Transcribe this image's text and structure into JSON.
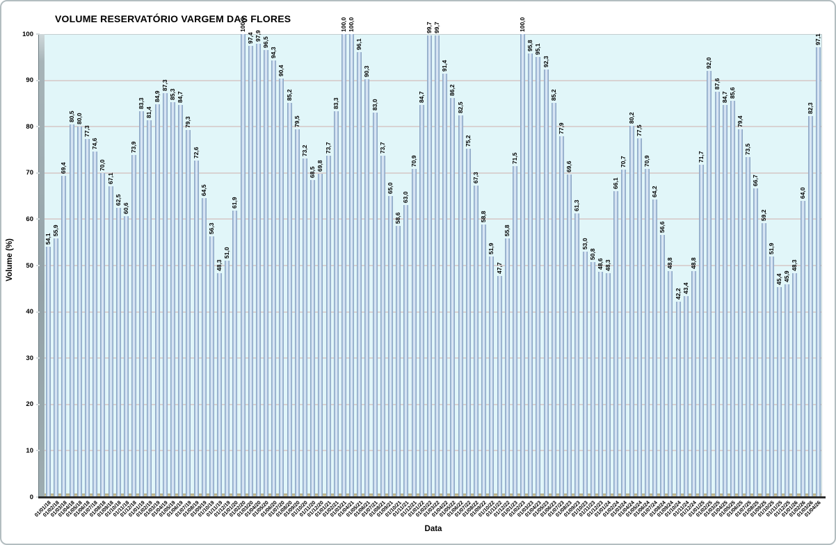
{
  "chart_data": {
    "type": "bar",
    "title": "VOLUME RESERVATÓRIO VARGEM DAS FLORES",
    "xlabel": "Data",
    "ylabel": "Volume (%)",
    "ylim": [
      0,
      100
    ],
    "yticks": [
      0,
      10,
      20,
      30,
      40,
      50,
      60,
      70,
      80,
      90,
      100
    ],
    "grid": true,
    "legend": "none",
    "decimal_separator": ",",
    "value_label_rotation_deg": 90,
    "category_label_rotation_deg": 45,
    "categories": [
      "01/01/18",
      "01/02/18",
      "01/03/18",
      "01/04/18",
      "01/05/18",
      "01/06/18",
      "01/07/18",
      "01/08/18",
      "01/09/18",
      "01/10/18",
      "01/11/18",
      "01/12/18",
      "01/01/19",
      "01/02/19",
      "01/03/19",
      "01/04/19",
      "01/05/19",
      "01/06/19",
      "01/07/19",
      "01/08/19",
      "01/09/19",
      "01/10/19",
      "01/11/19",
      "01/12/19",
      "01/01/20",
      "01/02/20",
      "01/03/20",
      "01/04/20",
      "01/05/20",
      "01/06/20",
      "01/07/20",
      "01/08/20",
      "01/09/20",
      "01/10/20",
      "01/11/20",
      "01/12/20",
      "01/01/21",
      "01/02/21",
      "01/03/21",
      "01/04/21",
      "01/05/21",
      "01/06/21",
      "01/07/21",
      "01/08/21",
      "01/09/21",
      "01/10/21",
      "01/11/21",
      "01/12/21",
      "01/01/22",
      "01/02/22",
      "01/03/22",
      "01/04/22",
      "01/05/22",
      "01/06/22",
      "01/07/22",
      "01/08/22",
      "01/09/22",
      "01/10/22",
      "01/11/22",
      "01/12/22",
      "01/01/23",
      "01/02/23",
      "01/03/23",
      "01/04/23",
      "01/05/23",
      "01/06/23",
      "01/07/23",
      "01/08/23",
      "01/09/23",
      "01/10/23",
      "01/11/23",
      "01/12/23",
      "01/01/24",
      "01/02/24",
      "01/03/24",
      "01/04/24",
      "01/05/24",
      "01/06/24",
      "01/07/24",
      "01/08/24",
      "01/09/24",
      "01/10/24",
      "01/11/24",
      "01/12/24",
      "01/01/25",
      "01/02/25",
      "01/03/25",
      "01/04/25",
      "01/05/25",
      "01/06/25",
      "01/07/25",
      "01/08/25",
      "01/09/25",
      "01/10/25",
      "01/11/25",
      "01/12/25",
      "01/01/26",
      "01/02/26",
      "01/03/26",
      "01/04/26"
    ],
    "values": [
      54.1,
      55.9,
      69.4,
      80.5,
      80.0,
      77.3,
      74.6,
      70.0,
      67.1,
      62.5,
      60.6,
      73.9,
      83.3,
      81.4,
      84.9,
      87.3,
      85.3,
      84.7,
      79.3,
      72.6,
      64.5,
      56.3,
      48.3,
      51.0,
      61.9,
      100.0,
      97.4,
      97.9,
      96.5,
      94.3,
      90.4,
      85.2,
      79.5,
      73.2,
      68.5,
      69.8,
      73.7,
      83.3,
      100.0,
      100.0,
      96.1,
      90.3,
      83.0,
      73.7,
      65.0,
      58.6,
      63.0,
      70.9,
      84.7,
      99.7,
      99.7,
      91.4,
      86.2,
      82.5,
      75.2,
      67.3,
      58.8,
      51.9,
      47.7,
      55.8,
      71.5,
      100.0,
      95.8,
      95.1,
      92.3,
      85.2,
      77.9,
      69.6,
      61.3,
      53.0,
      50.8,
      48.6,
      48.3,
      66.1,
      70.7,
      80.2,
      77.5,
      70.9,
      64.2,
      56.6,
      48.8,
      42.2,
      43.4,
      48.8,
      71.7,
      92.0,
      87.6,
      84.7,
      85.6,
      79.4,
      73.5,
      66.7,
      59.2,
      51.9,
      45.4,
      45.9,
      48.3,
      64.0,
      82.3,
      97.1
    ],
    "colors": {
      "plot_bg": "#e1f6f9",
      "bar_edge": "#7d97b6",
      "bar_mid": "#a9c1dc",
      "bar_center": "#eef5fc",
      "gridline": "#d8d2d2",
      "wall": "#9aa9ae",
      "floor": "#ccc298",
      "axis_line": "#2b2b2b",
      "text": "#000000"
    }
  }
}
